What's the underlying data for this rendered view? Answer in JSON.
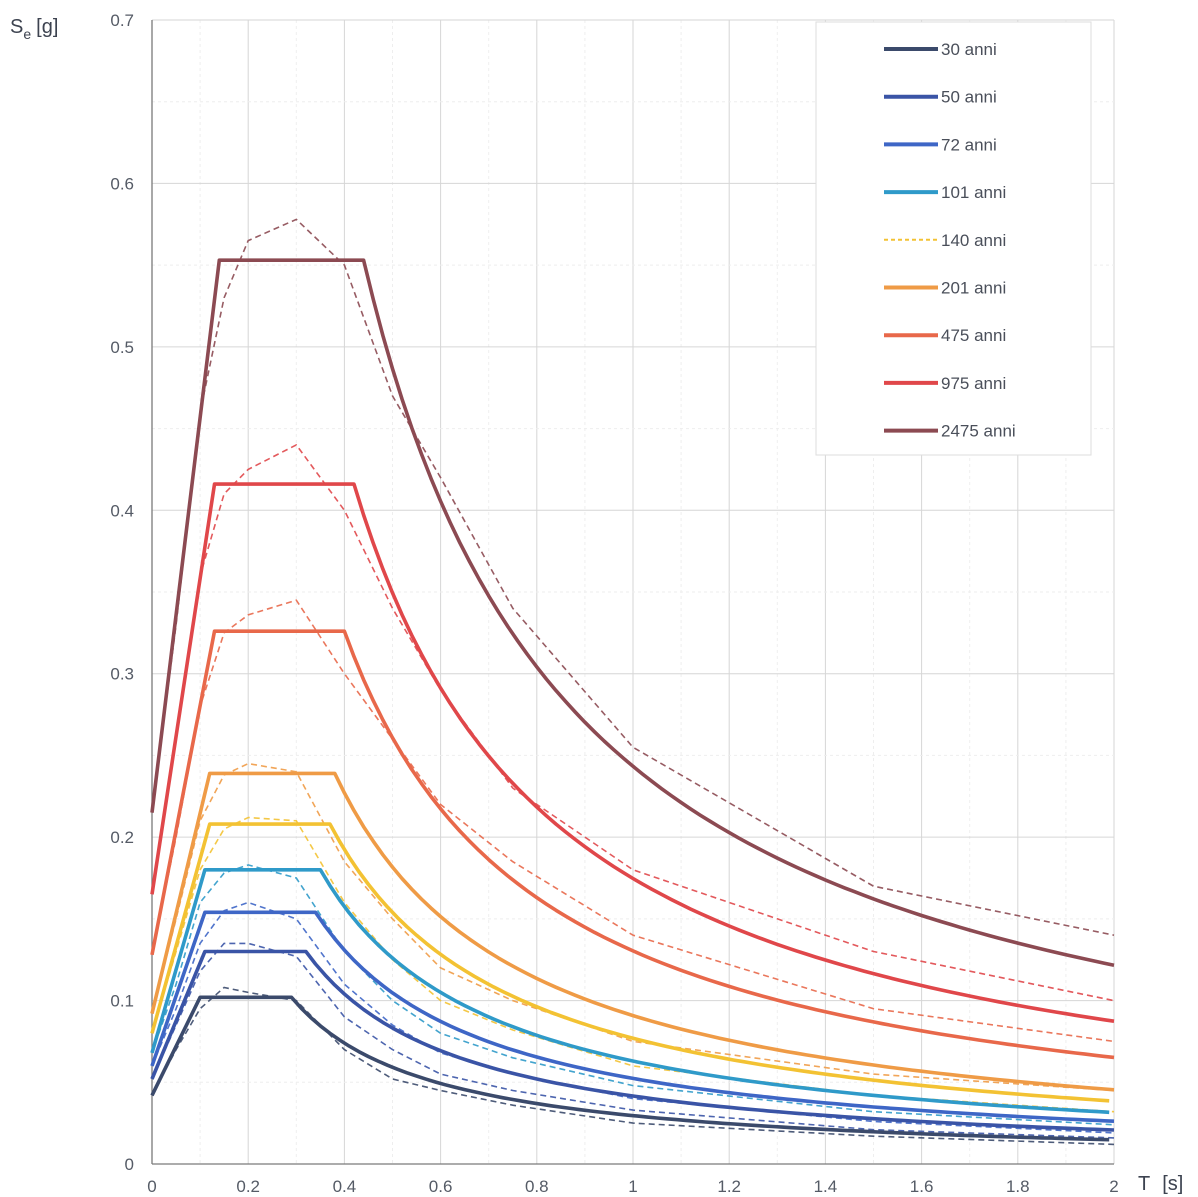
{
  "chart_data": {
    "type": "line",
    "x_axis": {
      "label": "T",
      "unit": "[s]",
      "range": [
        0,
        2
      ],
      "ticks": [
        "0",
        "0.2",
        "0.4",
        "0.6",
        "0.8",
        "1",
        "1.2",
        "1.4",
        "1.6",
        "1.8",
        "2"
      ]
    },
    "y_axis": {
      "label_main": "S",
      "label_sub": "e",
      "unit": "[g]",
      "range": [
        0,
        0.7
      ],
      "ticks": [
        "0",
        "0.1",
        "0.2",
        "0.3",
        "0.4",
        "0.5",
        "0.6",
        "0.7"
      ]
    },
    "grid": true,
    "legend_position": "top-right",
    "series": [
      {
        "name": "30 anni",
        "color": "#3b4a6b",
        "ag": 0.042,
        "plateau": 0.102,
        "Tb": 0.1,
        "Tc": 0.29,
        "dashed": [
          [
            0,
            0.042
          ],
          [
            0.05,
            0.07
          ],
          [
            0.1,
            0.095
          ],
          [
            0.15,
            0.108
          ],
          [
            0.2,
            0.105
          ],
          [
            0.3,
            0.1
          ],
          [
            0.4,
            0.07
          ],
          [
            0.5,
            0.052
          ],
          [
            0.6,
            0.045
          ],
          [
            0.75,
            0.036
          ],
          [
            1.0,
            0.025
          ],
          [
            1.5,
            0.017
          ],
          [
            2.0,
            0.012
          ]
        ]
      },
      {
        "name": "50 anni",
        "color": "#3a54a6",
        "ag": 0.052,
        "plateau": 0.13,
        "Tb": 0.11,
        "Tc": 0.32,
        "dashed": [
          [
            0,
            0.052
          ],
          [
            0.05,
            0.085
          ],
          [
            0.1,
            0.118
          ],
          [
            0.15,
            0.135
          ],
          [
            0.2,
            0.135
          ],
          [
            0.3,
            0.127
          ],
          [
            0.4,
            0.09
          ],
          [
            0.5,
            0.07
          ],
          [
            0.6,
            0.055
          ],
          [
            0.75,
            0.045
          ],
          [
            1.0,
            0.033
          ],
          [
            1.5,
            0.021
          ],
          [
            2.0,
            0.016
          ]
        ]
      },
      {
        "name": "72 anni",
        "color": "#3e66c6",
        "ag": 0.06,
        "plateau": 0.154,
        "Tb": 0.11,
        "Tc": 0.34,
        "dashed": [
          [
            0,
            0.06
          ],
          [
            0.05,
            0.095
          ],
          [
            0.1,
            0.135
          ],
          [
            0.15,
            0.155
          ],
          [
            0.2,
            0.16
          ],
          [
            0.3,
            0.15
          ],
          [
            0.4,
            0.11
          ],
          [
            0.5,
            0.085
          ],
          [
            0.6,
            0.068
          ],
          [
            0.75,
            0.055
          ],
          [
            1.0,
            0.04
          ],
          [
            1.5,
            0.026
          ],
          [
            2.0,
            0.019
          ]
        ]
      },
      {
        "name": "101 anni",
        "color": "#2f9ac9",
        "ag": 0.068,
        "plateau": 0.18,
        "Tb": 0.11,
        "Tc": 0.35,
        "dashed": [
          [
            0,
            0.068
          ],
          [
            0.05,
            0.11
          ],
          [
            0.1,
            0.16
          ],
          [
            0.15,
            0.178
          ],
          [
            0.2,
            0.183
          ],
          [
            0.3,
            0.175
          ],
          [
            0.4,
            0.13
          ],
          [
            0.5,
            0.1
          ],
          [
            0.6,
            0.08
          ],
          [
            0.75,
            0.065
          ],
          [
            1.0,
            0.048
          ],
          [
            1.5,
            0.032
          ],
          [
            2.0,
            0.024
          ]
        ]
      },
      {
        "name": "140 anni",
        "color": "#f3c233",
        "ag": 0.08,
        "plateau": 0.208,
        "Tb": 0.12,
        "Tc": 0.37,
        "dashed": [
          [
            0,
            0.08
          ],
          [
            0.05,
            0.13
          ],
          [
            0.1,
            0.18
          ],
          [
            0.15,
            0.205
          ],
          [
            0.2,
            0.212
          ],
          [
            0.3,
            0.21
          ],
          [
            0.4,
            0.16
          ],
          [
            0.5,
            0.125
          ],
          [
            0.6,
            0.1
          ],
          [
            0.75,
            0.082
          ],
          [
            1.0,
            0.06
          ],
          [
            1.5,
            0.042
          ],
          [
            2.0,
            0.032
          ]
        ]
      },
      {
        "name": "201 anni",
        "color": "#ef9b46",
        "ag": 0.092,
        "plateau": 0.239,
        "Tb": 0.12,
        "Tc": 0.38,
        "dashed": [
          [
            0,
            0.092
          ],
          [
            0.05,
            0.15
          ],
          [
            0.1,
            0.21
          ],
          [
            0.15,
            0.238
          ],
          [
            0.2,
            0.245
          ],
          [
            0.3,
            0.24
          ],
          [
            0.4,
            0.185
          ],
          [
            0.5,
            0.15
          ],
          [
            0.6,
            0.12
          ],
          [
            0.75,
            0.1
          ],
          [
            1.0,
            0.075
          ],
          [
            1.5,
            0.055
          ],
          [
            2.0,
            0.045
          ]
        ]
      },
      {
        "name": "475 anni",
        "color": "#e8684a",
        "ag": 0.128,
        "plateau": 0.326,
        "Tb": 0.13,
        "Tc": 0.4,
        "dashed": [
          [
            0,
            0.128
          ],
          [
            0.05,
            0.2
          ],
          [
            0.1,
            0.28
          ],
          [
            0.15,
            0.325
          ],
          [
            0.2,
            0.336
          ],
          [
            0.3,
            0.345
          ],
          [
            0.4,
            0.3
          ],
          [
            0.5,
            0.26
          ],
          [
            0.6,
            0.22
          ],
          [
            0.75,
            0.185
          ],
          [
            1.0,
            0.14
          ],
          [
            1.5,
            0.095
          ],
          [
            2.0,
            0.075
          ]
        ]
      },
      {
        "name": "975 anni",
        "color": "#e0474a",
        "ag": 0.165,
        "plateau": 0.416,
        "Tb": 0.13,
        "Tc": 0.42,
        "dashed": [
          [
            0,
            0.165
          ],
          [
            0.05,
            0.26
          ],
          [
            0.1,
            0.36
          ],
          [
            0.15,
            0.41
          ],
          [
            0.2,
            0.425
          ],
          [
            0.3,
            0.44
          ],
          [
            0.4,
            0.4
          ],
          [
            0.5,
            0.34
          ],
          [
            0.6,
            0.29
          ],
          [
            0.75,
            0.23
          ],
          [
            1.0,
            0.18
          ],
          [
            1.5,
            0.13
          ],
          [
            2.0,
            0.1
          ]
        ]
      },
      {
        "name": "2475 anni",
        "color": "#8c4a52",
        "ag": 0.215,
        "plateau": 0.553,
        "Tb": 0.14,
        "Tc": 0.44,
        "dashed": [
          [
            0,
            0.215
          ],
          [
            0.05,
            0.33
          ],
          [
            0.1,
            0.46
          ],
          [
            0.15,
            0.53
          ],
          [
            0.2,
            0.565
          ],
          [
            0.3,
            0.578
          ],
          [
            0.4,
            0.55
          ],
          [
            0.5,
            0.47
          ],
          [
            0.6,
            0.42
          ],
          [
            0.75,
            0.34
          ],
          [
            1.0,
            0.255
          ],
          [
            1.5,
            0.17
          ],
          [
            2.0,
            0.14
          ]
        ]
      }
    ]
  }
}
